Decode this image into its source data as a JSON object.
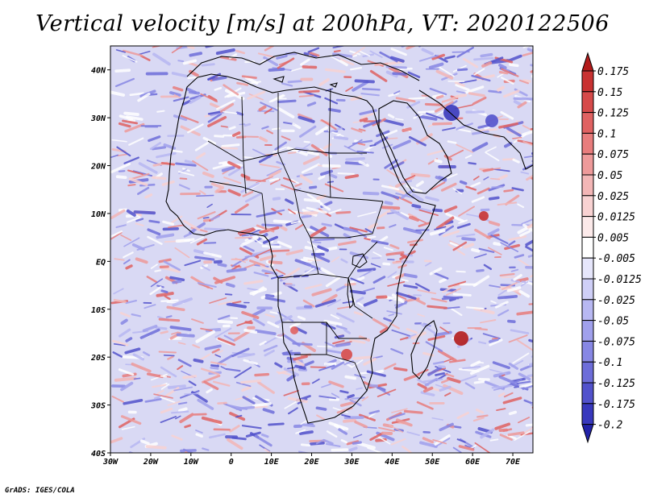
{
  "title": "Vertical velocity [m/s] at 200hPa, VT: 2020122506",
  "footer": "GrADS: IGES/COLA",
  "map": {
    "lon_range": [
      -30,
      75
    ],
    "lat_range": [
      -40,
      45
    ],
    "lon_ticks": [
      "30W",
      "20W",
      "10W",
      "0",
      "10E",
      "20E",
      "30E",
      "40E",
      "50E",
      "60E",
      "70E"
    ],
    "lat_ticks": [
      "40N",
      "30N",
      "20N",
      "10N",
      "EQ",
      "10S",
      "20S",
      "30S",
      "40S"
    ]
  },
  "colorbar": {
    "labels": [
      "0.175",
      "0.15",
      "0.125",
      "0.1",
      "0.075",
      "0.05",
      "0.025",
      "0.0125",
      "0.005",
      "-0.005",
      "-0.0125",
      "-0.025",
      "-0.05",
      "-0.075",
      "-0.1",
      "-0.125",
      "-0.175",
      "-0.2"
    ],
    "colors": [
      "#b31b1b",
      "#c83232",
      "#d64a4a",
      "#e06262",
      "#e87d7d",
      "#ee9a9a",
      "#f3b6b6",
      "#f8d2d2",
      "#fceaea",
      "#ffffff",
      "#e6e6fb",
      "#cfcff7",
      "#b8b8f2",
      "#a0a0ec",
      "#8787e4",
      "#6d6dd9",
      "#5252cc",
      "#3838bd",
      "#2222a8"
    ]
  }
}
